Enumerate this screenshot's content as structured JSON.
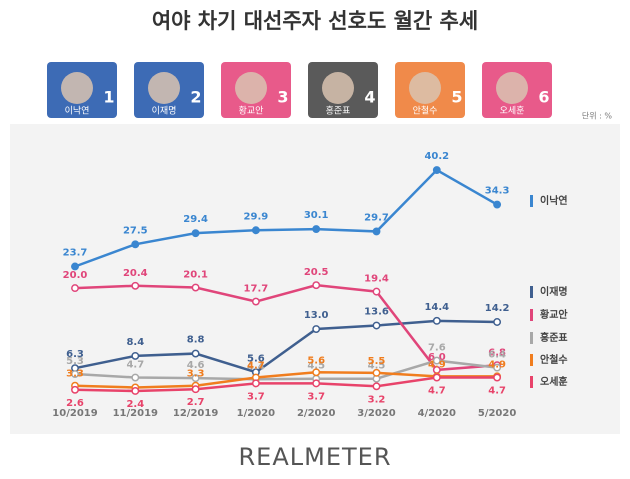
{
  "chart_data": {
    "type": "line",
    "title": "여야 차기 대선주자 선호도 월간 추세",
    "unit": "단위 : %",
    "source": "REALMETER",
    "x": [
      "10/2019",
      "11/2019",
      "12/2019",
      "1/2020",
      "2/2020",
      "3/2020",
      "4/2020",
      "5/2020"
    ],
    "ylim": [
      0,
      45
    ],
    "grid": false,
    "series": [
      {
        "name": "이낙연",
        "color": "#3a86d0",
        "values": [
          23.7,
          27.5,
          29.4,
          29.9,
          30.1,
          29.7,
          40.2,
          34.3
        ]
      },
      {
        "name": "이재명",
        "color": "#3f5f8f",
        "values": [
          6.3,
          8.4,
          8.8,
          5.6,
          13.0,
          13.6,
          14.4,
          14.2
        ],
        "value_labels": [
          "6.3",
          "8.4",
          "8.8",
          "5.6",
          "13.0",
          "13.6",
          "14.4",
          "14.2"
        ]
      },
      {
        "name": "황교안",
        "color": "#e0457a",
        "values": [
          20.0,
          20.4,
          20.1,
          17.7,
          20.5,
          19.4,
          6.0,
          6.8
        ],
        "value_labels": [
          "20.0",
          "20.4",
          "20.1",
          "17.7",
          "20.5",
          "19.4",
          "6.0",
          "6.8"
        ]
      },
      {
        "name": "홍준표",
        "color": "#a8a8a8",
        "values": [
          5.3,
          4.7,
          4.6,
          4.4,
          4.5,
          4.5,
          7.6,
          6.4
        ]
      },
      {
        "name": "안철수",
        "color": "#f07d1e",
        "values": [
          3.3,
          3.0,
          3.3,
          4.7,
          5.6,
          5.5,
          4.9,
          4.9
        ],
        "value_labels": [
          "3.3",
          null,
          "3.3",
          "4.7",
          "5.6",
          "5.5",
          "4.9",
          "4.9"
        ]
      },
      {
        "name": "오세훈",
        "color": "#e8436a",
        "values": [
          2.6,
          2.4,
          2.7,
          3.7,
          3.7,
          3.2,
          4.7,
          4.7
        ]
      }
    ],
    "profiles": [
      {
        "name": "이낙연",
        "number": 1,
        "color": "#3d6bb5"
      },
      {
        "name": "이재명",
        "number": 2,
        "color": "#3d6bb5"
      },
      {
        "name": "황교안",
        "number": 3,
        "color": "#e85a8a"
      },
      {
        "name": "홍준표",
        "number": 4,
        "color": "#5a5a5a"
      },
      {
        "name": "안철수",
        "number": 5,
        "color": "#f08a4a"
      },
      {
        "name": "오세훈",
        "number": 6,
        "color": "#e85a8a"
      }
    ]
  }
}
